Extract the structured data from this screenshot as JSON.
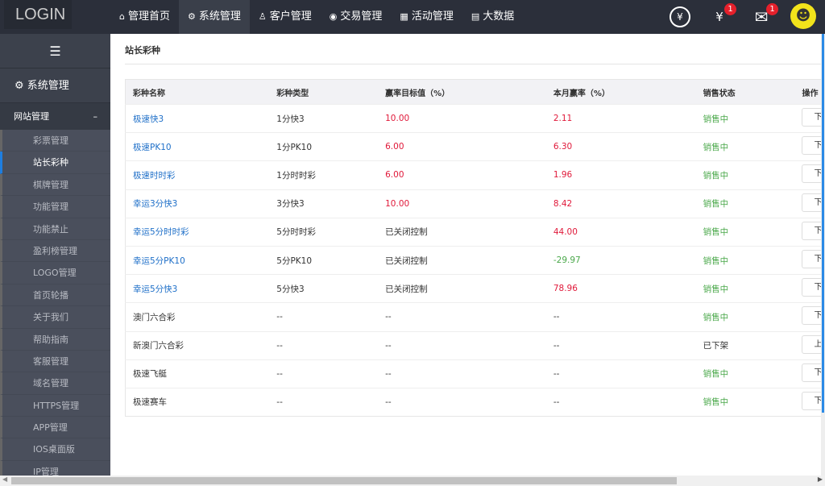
{
  "header": {
    "logo": "LOGIN",
    "nav": [
      {
        "icon": "home-icon",
        "glyph": "⌂",
        "label": "管理首页"
      },
      {
        "icon": "gear-icon",
        "glyph": "⚙",
        "label": "系统管理",
        "active": true
      },
      {
        "icon": "user-icon",
        "glyph": "♙",
        "label": "客户管理"
      },
      {
        "icon": "coin-icon",
        "glyph": "◉",
        "label": "交易管理"
      },
      {
        "icon": "gift-icon",
        "glyph": "▦",
        "label": "活动管理"
      },
      {
        "icon": "report-icon",
        "glyph": "▤",
        "label": "大数据"
      }
    ],
    "icons": {
      "withdraw_glyph": "¥",
      "receipt_glyph": "¥",
      "receipt_badge": "1",
      "mail_glyph": "✉",
      "mail_badge": "1",
      "avatar_glyph": "☻"
    }
  },
  "sidebar": {
    "toggle_glyph": "☰",
    "section": "系统管理",
    "group": "网站管理",
    "group_toggle": "–",
    "items": [
      "彩票管理",
      "站长彩种",
      "棋牌管理",
      "功能管理",
      "功能禁止",
      "盈利榜管理",
      "LOGO管理",
      "首页轮播",
      "关于我们",
      "帮助指南",
      "客服管理",
      "域名管理",
      "HTTPS管理",
      "APP管理",
      "IOS桌面版",
      "IP管理"
    ],
    "active": "站长彩种"
  },
  "page": {
    "title": "站长彩种"
  },
  "table": {
    "headers": [
      "彩种名称",
      "彩种类型",
      "赢率目标值（%）",
      "本月赢率（%）",
      "销售状态",
      "操作"
    ],
    "rows": [
      [
        "极速快3",
        "1分快3",
        "10.00",
        "2.11",
        "销售中",
        "下架"
      ],
      [
        "极速PK10",
        "1分PK10",
        "6.00",
        "6.30",
        "销售中",
        "下架"
      ],
      [
        "极速时时彩",
        "1分时时彩",
        "6.00",
        "1.96",
        "销售中",
        "下架"
      ],
      [
        "幸运3分快3",
        "3分快3",
        "10.00",
        "8.42",
        "销售中",
        "下架"
      ],
      [
        "幸运5分时时彩",
        "5分时时彩",
        "已关闭控制",
        "44.00",
        "销售中",
        "下架"
      ],
      [
        "幸运5分PK10",
        "5分PK10",
        "已关闭控制",
        "-29.97",
        "销售中",
        "下架"
      ],
      [
        "幸运5分快3",
        "5分快3",
        "已关闭控制",
        "78.96",
        "销售中",
        "下架"
      ],
      [
        "澳门六合彩",
        "--",
        "--",
        "--",
        "销售中",
        "下架"
      ],
      [
        "新澳门六合彩",
        "--",
        "--",
        "--",
        "已下架",
        "上架"
      ],
      [
        "极速飞艇",
        "--",
        "--",
        "--",
        "销售中",
        "下架"
      ],
      [
        "极速赛车",
        "--",
        "--",
        "--",
        "销售中",
        "下架"
      ]
    ]
  },
  "colors": {
    "link": "#1e6fc8",
    "positive": "#e0193a",
    "negative": "#4aa84a",
    "on_sale": "#4aa84a"
  }
}
